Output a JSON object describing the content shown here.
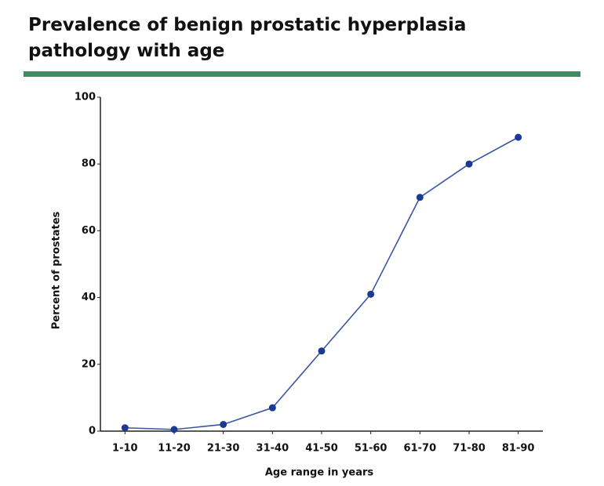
{
  "chart_data": {
    "type": "line",
    "title": "Prevalence of benign prostatic hyperplasia pathology with age",
    "x_label": "Age range in years",
    "y_label": "Percent of prostates",
    "categories": [
      "1-10",
      "11-20",
      "21-30",
      "31-40",
      "41-50",
      "51-60",
      "61-70",
      "71-80",
      "81-90"
    ],
    "series": [
      {
        "name": "Percent of prostates",
        "color": "#1c3a94",
        "values": [
          1,
          0.5,
          2,
          7,
          24,
          41,
          70,
          80,
          88
        ]
      }
    ],
    "ylim": [
      0,
      100
    ],
    "yticks": [
      0,
      20,
      40,
      60,
      80,
      100
    ],
    "grid": false
  }
}
